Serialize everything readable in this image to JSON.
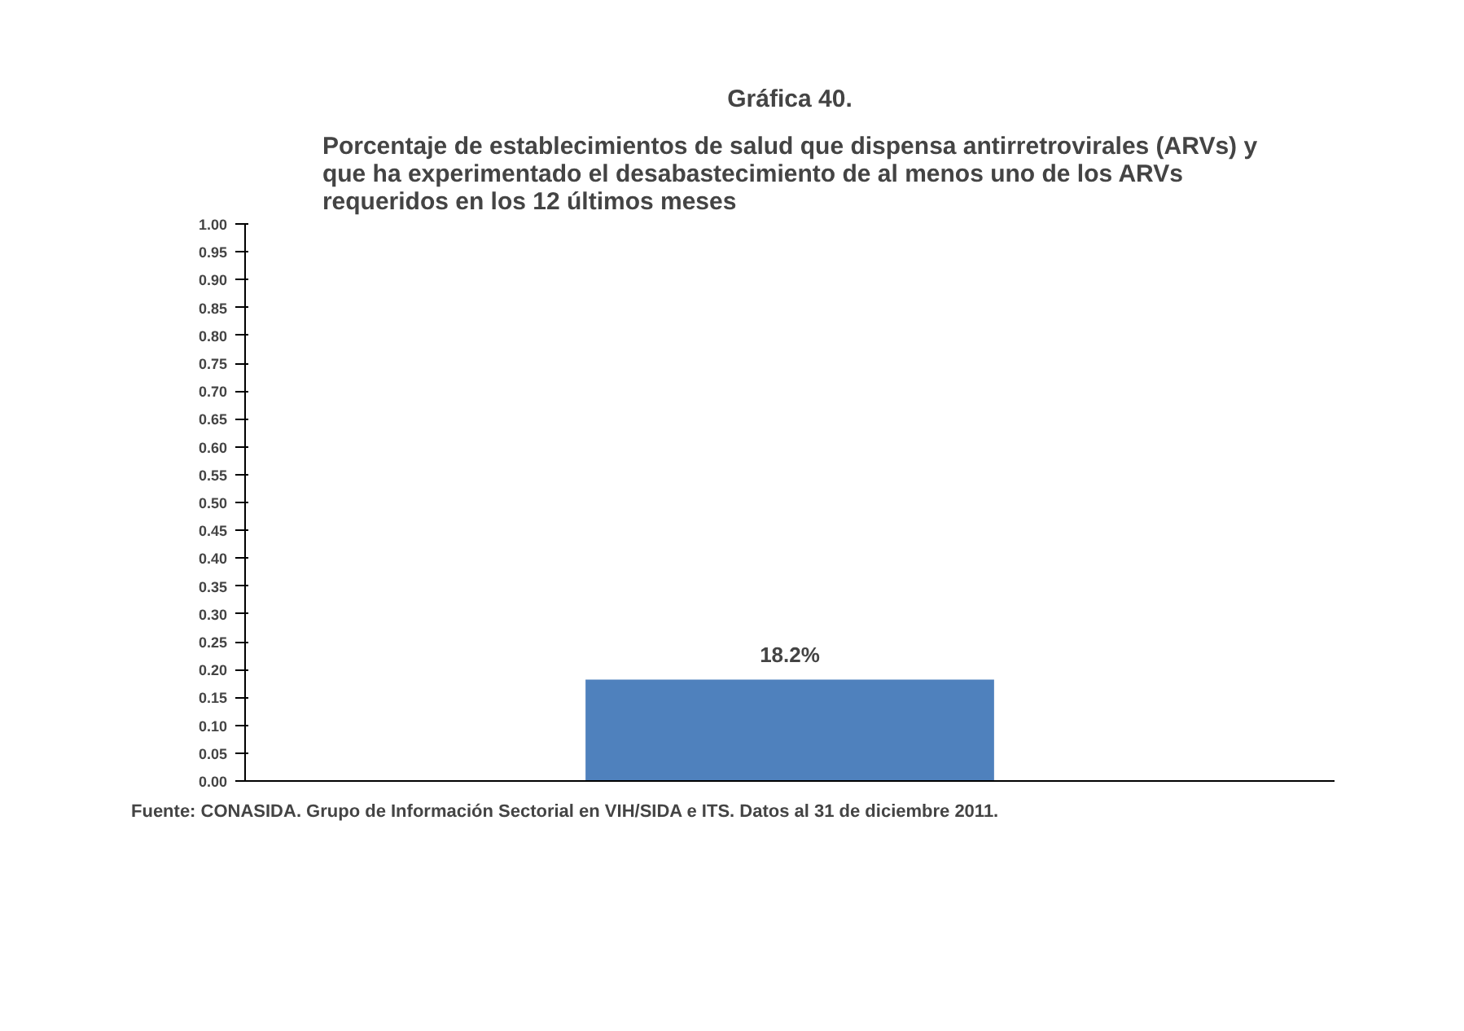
{
  "chart_data": {
    "type": "bar",
    "title": "Gráfica 40.",
    "subtitle": "Porcentaje de establecimientos de salud que dispensa antirretrovirales (ARVs) y que ha experimentado el desabastecimiento de al menos uno de los ARVs requeridos en los 12 últimos meses",
    "categories": [
      null
    ],
    "values": [
      0.182
    ],
    "value_labels": [
      "18.2%"
    ],
    "color": "#4f81bd",
    "ylim": [
      0,
      1.0
    ],
    "yticks": [
      {
        "value": 0,
        "label": "0.00"
      },
      0.05,
      {
        "value": 0.1,
        "label": "0.10"
      },
      0.15,
      {
        "value": 0.2,
        "label": "0.20"
      },
      0.25,
      {
        "value": 0.3,
        "label": "0.30"
      },
      0.35,
      {
        "value": 0.4,
        "label": "0.40"
      },
      0.45,
      {
        "value": 0.5,
        "label": "0.50"
      },
      0.55,
      {
        "value": 0.6,
        "label": "0.60"
      },
      0.65,
      {
        "value": 0.7,
        "label": "0.70"
      },
      0.75,
      {
        "value": 0.8,
        "label": "0.80"
      },
      0.85,
      {
        "value": 0.9,
        "label": "0.90"
      },
      0.95,
      {
        "value": 1.0,
        "label": "1.00"
      }
    ],
    "grid": false,
    "annotations": [
      "Fuente: CONASIDA. Grupo de Información Sectorial en VIH/SIDA e ITS. Datos al 31 de diciembre 2011."
    ]
  }
}
